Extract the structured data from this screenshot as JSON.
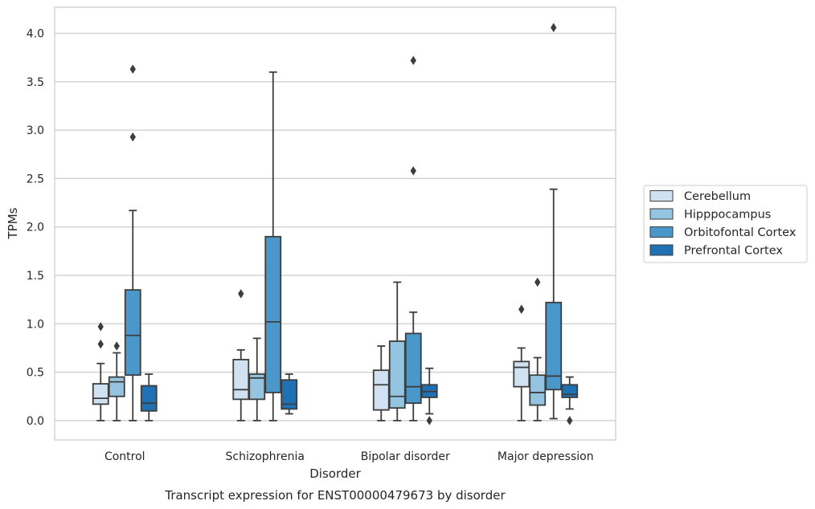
{
  "chart_data": {
    "type": "boxplot",
    "xlabel": "Disorder",
    "ylabel": "TPMs",
    "caption": "Transcript expression for ENST00000479673 by disorder",
    "categories": [
      "Control",
      "Schizophrenia",
      "Bipolar disorder",
      "Major depression"
    ],
    "ylim": [
      -0.2,
      4.27
    ],
    "yticks": [
      0.0,
      0.5,
      1.0,
      1.5,
      2.0,
      2.5,
      3.0,
      3.5,
      4.0
    ],
    "ytick_labels": [
      "0.0",
      "0.5",
      "1.0",
      "1.5",
      "2.0",
      "2.5",
      "3.0",
      "3.5",
      "4.0"
    ],
    "grid": "horizontal",
    "legend_position": "right",
    "series": [
      {
        "name": "Cerebellum",
        "color": "#d0e1f2",
        "boxes": [
          {
            "whisker_low": 0.0,
            "q1": 0.17,
            "median": 0.23,
            "q3": 0.38,
            "whisker_high": 0.59,
            "outliers": [
              0.79,
              0.97
            ]
          },
          {
            "whisker_low": 0.0,
            "q1": 0.22,
            "median": 0.32,
            "q3": 0.63,
            "whisker_high": 0.73,
            "outliers": [
              1.31
            ]
          },
          {
            "whisker_low": 0.0,
            "q1": 0.11,
            "median": 0.37,
            "q3": 0.52,
            "whisker_high": 0.77,
            "outliers": []
          },
          {
            "whisker_low": 0.0,
            "q1": 0.35,
            "median": 0.55,
            "q3": 0.61,
            "whisker_high": 0.75,
            "outliers": [
              1.15
            ]
          }
        ]
      },
      {
        "name": "Hipppocampus",
        "color": "#94c4df",
        "boxes": [
          {
            "whisker_low": 0.0,
            "q1": 0.25,
            "median": 0.4,
            "q3": 0.45,
            "whisker_high": 0.7,
            "outliers": [
              0.77
            ]
          },
          {
            "whisker_low": 0.0,
            "q1": 0.22,
            "median": 0.44,
            "q3": 0.48,
            "whisker_high": 0.85,
            "outliers": []
          },
          {
            "whisker_low": 0.0,
            "q1": 0.13,
            "median": 0.25,
            "q3": 0.82,
            "whisker_high": 1.43,
            "outliers": []
          },
          {
            "whisker_low": 0.0,
            "q1": 0.16,
            "median": 0.29,
            "q3": 0.47,
            "whisker_high": 0.65,
            "outliers": [
              1.43
            ]
          }
        ]
      },
      {
        "name": "Orbitofontal Cortex",
        "color": "#4a98c9",
        "boxes": [
          {
            "whisker_low": 0.0,
            "q1": 0.47,
            "median": 0.88,
            "q3": 1.35,
            "whisker_high": 2.17,
            "outliers": [
              2.93,
              3.63
            ]
          },
          {
            "whisker_low": 0.0,
            "q1": 0.29,
            "median": 1.02,
            "q3": 1.9,
            "whisker_high": 3.6,
            "outliers": []
          },
          {
            "whisker_low": 0.0,
            "q1": 0.18,
            "median": 0.35,
            "q3": 0.9,
            "whisker_high": 1.12,
            "outliers": [
              2.58,
              3.72
            ]
          },
          {
            "whisker_low": 0.02,
            "q1": 0.32,
            "median": 0.46,
            "q3": 1.22,
            "whisker_high": 2.39,
            "outliers": [
              4.06
            ]
          }
        ]
      },
      {
        "name": "Prefrontal Cortex",
        "color": "#2070b4",
        "boxes": [
          {
            "whisker_low": 0.0,
            "q1": 0.1,
            "median": 0.18,
            "q3": 0.36,
            "whisker_high": 0.48,
            "outliers": []
          },
          {
            "whisker_low": 0.07,
            "q1": 0.12,
            "median": 0.17,
            "q3": 0.42,
            "whisker_high": 0.48,
            "outliers": []
          },
          {
            "whisker_low": 0.07,
            "q1": 0.24,
            "median": 0.3,
            "q3": 0.37,
            "whisker_high": 0.54,
            "outliers": [
              0.0
            ]
          },
          {
            "whisker_low": 0.12,
            "q1": 0.24,
            "median": 0.27,
            "q3": 0.37,
            "whisker_high": 0.45,
            "outliers": [
              0.0
            ]
          }
        ]
      }
    ]
  }
}
